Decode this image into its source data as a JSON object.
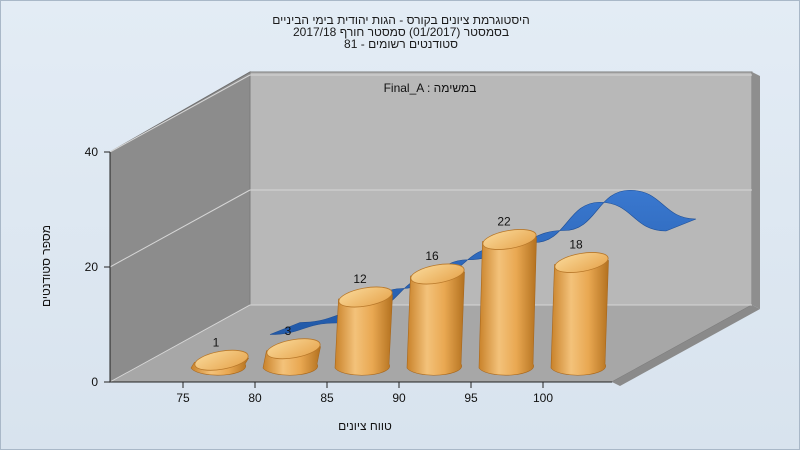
{
  "title_lines": [
    "היסטוגרמת ציונים בקורס - הגות יהודית בימי הביניים",
    "בסמסטר  (01/2017)  סמסטר חורף 2017/18",
    "סטודנטים רשומים - 81"
  ],
  "chart_data": {
    "type": "bar",
    "style": "3d-cylinder",
    "title": "היסטוגרמת ציונים בקורס - הגות יהודית בימי הביניים",
    "subtitle": "בסמסטר  (01/2017)  סמסטר חורף 2017/18 | סטודנטים רשומים - 81",
    "annotation": "Final_A : במשימה",
    "xlabel": "טווח ציונים",
    "ylabel": "מספר סטודנטים",
    "x_ticks": [
      "75",
      "80",
      "85",
      "90",
      "95",
      "100"
    ],
    "y_ticks": [
      "0",
      "20",
      "40"
    ],
    "ylim": [
      0,
      40
    ],
    "grid": true,
    "categories": [
      "75-80",
      "80-85",
      "85-90",
      "90-95",
      "95-100",
      "100"
    ],
    "values": [
      1,
      3,
      12,
      16,
      22,
      18
    ],
    "curve": {
      "type": "ribbon",
      "values": [
        2,
        4,
        10,
        15,
        18,
        25,
        20
      ]
    },
    "colors": {
      "bar": "#e8a64c",
      "bar_top": "#f6cf84",
      "curve": "#2e6bc2",
      "back_wall": "#b7b7b7",
      "side_wall": "#8a8a8a",
      "floor": "#a6a6a6"
    }
  }
}
